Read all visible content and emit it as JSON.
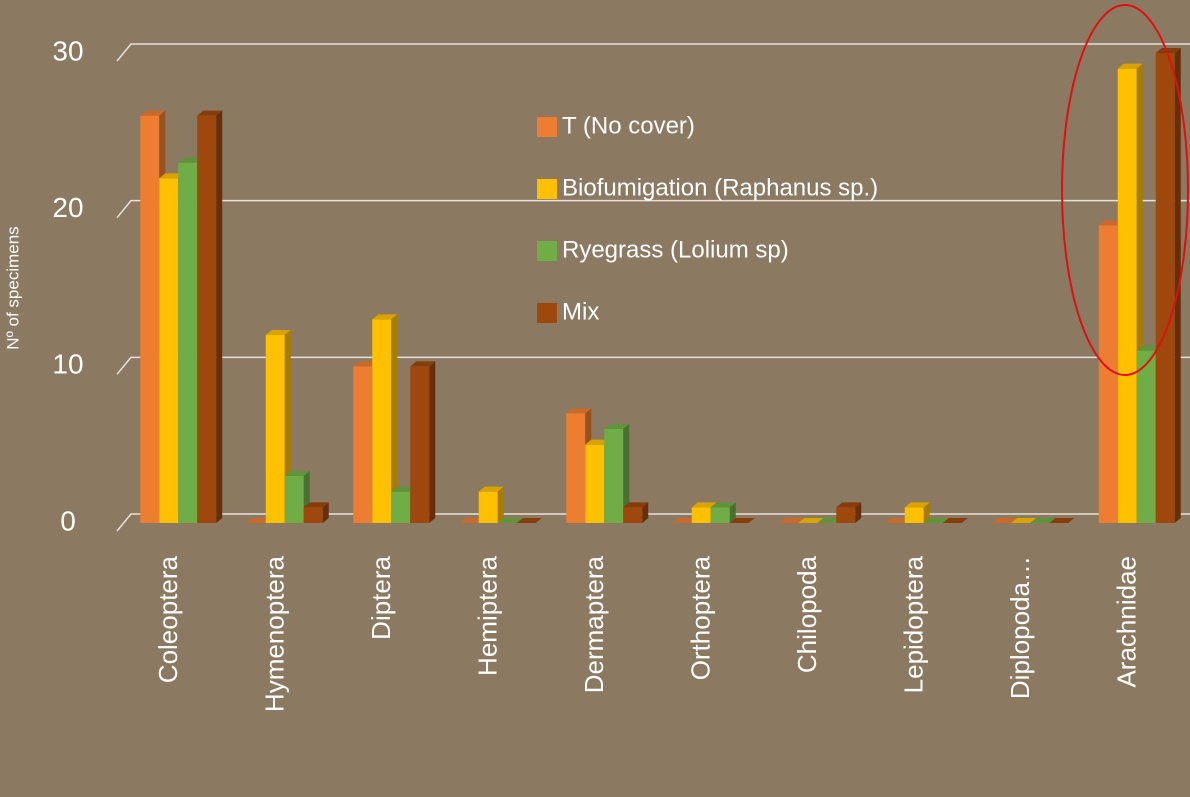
{
  "chart_data": {
    "type": "bar3d",
    "y_label": "Nº of specimens",
    "categories": [
      "Coleoptera",
      "Hymenoptera",
      "Diptera",
      "Hemiptera",
      "Dermaptera",
      "Orthoptera",
      "Chilopoda",
      "Lepidoptera",
      "Diplopoda…",
      "Arachnidae"
    ],
    "series": [
      {
        "name": "T (No cover)",
        "color": "#ed7d31",
        "values": [
          26,
          0,
          10,
          0,
          7,
          0,
          0,
          0,
          0,
          19
        ]
      },
      {
        "name": "Biofumigation (Raphanus sp.)",
        "color": "#ffc000",
        "values": [
          22,
          12,
          13,
          2,
          5,
          1,
          0,
          1,
          0,
          29
        ]
      },
      {
        "name": "Ryegrass (Lolium sp)",
        "color": "#70ad47",
        "values": [
          23,
          3,
          2,
          0,
          6,
          1,
          0,
          0,
          0,
          11
        ]
      },
      {
        "name": "Mix",
        "color": "#9e480e",
        "values": [
          26,
          1,
          10,
          0,
          1,
          0,
          1,
          0,
          0,
          30
        ]
      }
    ],
    "ylim": [
      0,
      30
    ],
    "yticks": [
      0,
      10,
      20,
      30
    ],
    "grid": true,
    "legend": "top-center"
  }
}
